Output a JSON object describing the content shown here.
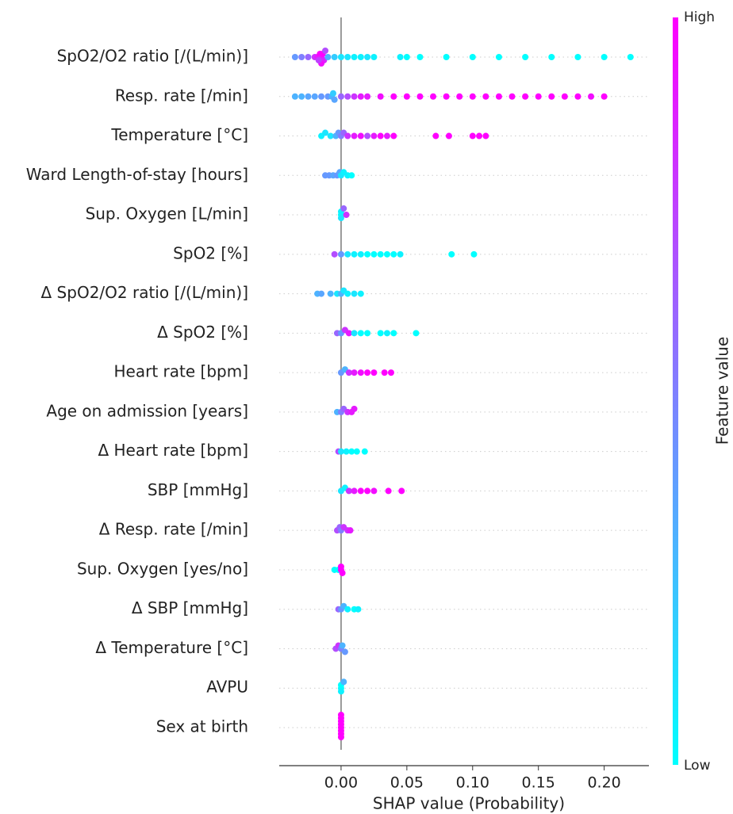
{
  "chart_data": {
    "type": "beeswarm",
    "xlabel": "SHAP value (Probability)",
    "xlim": [
      -0.047,
      0.234
    ],
    "xticks": [
      {
        "value": 0,
        "label": "0.00"
      },
      {
        "value": 0.05,
        "label": "0.05"
      },
      {
        "value": 0.1,
        "label": "0.10"
      },
      {
        "value": 0.15,
        "label": "0.15"
      },
      {
        "value": 0.2,
        "label": "0.20"
      }
    ],
    "colormap": [
      "#00ffff",
      "#ff00ff"
    ],
    "colorbar": {
      "label": "Feature value",
      "high": "High",
      "low": "Low"
    },
    "features": [
      {
        "name": "SpO2/O2 ratio [/(L/min)]",
        "shap": [
          -0.035,
          -0.03,
          -0.025,
          -0.02,
          -0.018,
          -0.016,
          -0.015,
          -0.014,
          -0.013,
          -0.012,
          -0.015,
          -0.017,
          -0.01,
          -0.005,
          0,
          0.005,
          0.01,
          0.015,
          0.02,
          0.025,
          0.045,
          0.05,
          0.06,
          0.08,
          0.1,
          0.12,
          0.14,
          0.16,
          0.18,
          0.2,
          0.22
        ],
        "feature_value": [
          0.4,
          0.5,
          0.6,
          0.8,
          0.9,
          1,
          0.9,
          1,
          0.85,
          0.7,
          0.95,
          0.75,
          0.3,
          0.2,
          0.1,
          0.1,
          0.05,
          0.05,
          0.1,
          0.05,
          0.05,
          0,
          0,
          0,
          0,
          0,
          0,
          0,
          0,
          0,
          0
        ]
      },
      {
        "name": "Resp. rate [/min]",
        "shap": [
          -0.035,
          -0.03,
          -0.025,
          -0.02,
          -0.015,
          -0.01,
          -0.007,
          -0.006,
          -0.005,
          0,
          0.005,
          0.01,
          0.015,
          0.02,
          0.03,
          0.04,
          0.05,
          0.06,
          0.07,
          0.08,
          0.09,
          0.1,
          0.11,
          0.12,
          0.13,
          0.14,
          0.15,
          0.16,
          0.17,
          0.18,
          0.19,
          0.2
        ],
        "feature_value": [
          0.3,
          0.3,
          0.35,
          0.35,
          0.4,
          0.4,
          0.3,
          0.2,
          0.35,
          0.6,
          0.7,
          0.8,
          0.9,
          0.9,
          0.95,
          1,
          1,
          1,
          1,
          1,
          1,
          1,
          1,
          1,
          1,
          1,
          1,
          1,
          1,
          1,
          0.95,
          1
        ]
      },
      {
        "name": "Temperature [°C]",
        "shap": [
          -0.015,
          -0.012,
          -0.008,
          -0.004,
          -0.002,
          0,
          0.002,
          0.005,
          0.01,
          0.015,
          0.02,
          0.025,
          0.03,
          0.035,
          0.04,
          0.072,
          0.082,
          0.1,
          0.105,
          0.11
        ],
        "feature_value": [
          0.05,
          0.1,
          0.1,
          0.3,
          0.4,
          0.5,
          0.6,
          0.8,
          0.9,
          0.95,
          0.7,
          0.9,
          1,
          0.9,
          1,
          1,
          1,
          1,
          1,
          1
        ]
      },
      {
        "name": "Ward Length-of-stay [hours]",
        "shap": [
          -0.012,
          -0.009,
          -0.006,
          -0.003,
          -0.001,
          0,
          0.002,
          0.005,
          0.008
        ],
        "feature_value": [
          0.4,
          0.4,
          0.35,
          0.4,
          0.35,
          0.1,
          0.05,
          0.05,
          0
        ]
      },
      {
        "name": "Sup. Oxygen [L/min]",
        "shap": [
          0,
          0,
          0,
          0.002,
          0.004
        ],
        "feature_value": [
          0,
          0.05,
          0.1,
          0.6,
          0.8
        ]
      },
      {
        "name": "SpO2 [%]",
        "shap": [
          -0.005,
          0,
          0.005,
          0.01,
          0.015,
          0.02,
          0.025,
          0.03,
          0.035,
          0.04,
          0.045,
          0.084,
          0.101
        ],
        "feature_value": [
          0.7,
          0.4,
          0.1,
          0.05,
          0.05,
          0,
          0,
          0,
          0,
          0,
          0.05,
          0,
          0
        ]
      },
      {
        "name": "Δ SpO2/O2 ratio [/(L/min)]",
        "shap": [
          -0.018,
          -0.015,
          -0.008,
          -0.003,
          0,
          0.002,
          0.005,
          0.01,
          0.015
        ],
        "feature_value": [
          0.3,
          0.35,
          0.3,
          0.1,
          0.3,
          0.1,
          0.05,
          0.1,
          0.05
        ]
      },
      {
        "name": "Δ SpO2 [%]",
        "shap": [
          -0.003,
          0,
          0.003,
          0.006,
          0.01,
          0.015,
          0.02,
          0.03,
          0.035,
          0.04,
          0.057
        ],
        "feature_value": [
          0.6,
          0.4,
          0.8,
          0.9,
          0.1,
          0,
          0,
          0,
          0.05,
          0,
          0
        ]
      },
      {
        "name": "Heart rate [bpm]",
        "shap": [
          0,
          0.003,
          0.006,
          0.01,
          0.015,
          0.02,
          0.025,
          0.033,
          0.038
        ],
        "feature_value": [
          0.4,
          0.3,
          0.8,
          0.9,
          0.95,
          1,
          1,
          1,
          1
        ]
      },
      {
        "name": "Age on admission [years]",
        "shap": [
          -0.003,
          0,
          0.002,
          0.005,
          0.008,
          0.01
        ],
        "feature_value": [
          0.3,
          0.5,
          0.6,
          0.8,
          0.9,
          0.9
        ]
      },
      {
        "name": "Δ Heart rate [bpm]",
        "shap": [
          -0.002,
          0,
          0.004,
          0.008,
          0.012,
          0.018
        ],
        "feature_value": [
          0.7,
          0.1,
          0.05,
          0,
          0,
          0
        ]
      },
      {
        "name": "SBP [mmHg]",
        "shap": [
          0,
          0.003,
          0.006,
          0.01,
          0.015,
          0.02,
          0.025,
          0.036,
          0.046
        ],
        "feature_value": [
          0.1,
          0.05,
          0.8,
          0.9,
          1,
          1,
          0.95,
          1,
          1
        ]
      },
      {
        "name": "Δ Resp. rate [/min]",
        "shap": [
          -0.003,
          -0.001,
          0,
          0.002,
          0.005,
          0.007
        ],
        "feature_value": [
          0.7,
          0.6,
          0.5,
          0.8,
          0.8,
          0.9
        ]
      },
      {
        "name": "Sup. Oxygen [yes/no]",
        "shap": [
          -0.005,
          -0.002,
          0,
          0,
          0.001
        ],
        "feature_value": [
          0,
          0,
          1,
          1,
          1
        ]
      },
      {
        "name": "Δ SBP [mmHg]",
        "shap": [
          -0.002,
          0,
          0.002,
          0.005,
          0.01,
          0.013
        ],
        "feature_value": [
          0.6,
          0.4,
          0.3,
          0.05,
          0,
          0.05
        ]
      },
      {
        "name": "Δ Temperature [°C]",
        "shap": [
          -0.004,
          -0.002,
          0,
          0.001,
          0.003
        ],
        "feature_value": [
          0.7,
          0.8,
          0.5,
          0.3,
          0.4
        ]
      },
      {
        "name": "AVPU",
        "shap": [
          0,
          0,
          0,
          0.002
        ],
        "feature_value": [
          0,
          0,
          0.05,
          0.3
        ]
      },
      {
        "name": "Sex at birth",
        "shap": [
          0,
          0,
          0,
          0,
          0,
          0,
          0,
          0
        ],
        "feature_value": [
          1,
          1,
          1,
          1,
          1,
          1,
          1,
          1
        ]
      }
    ]
  }
}
